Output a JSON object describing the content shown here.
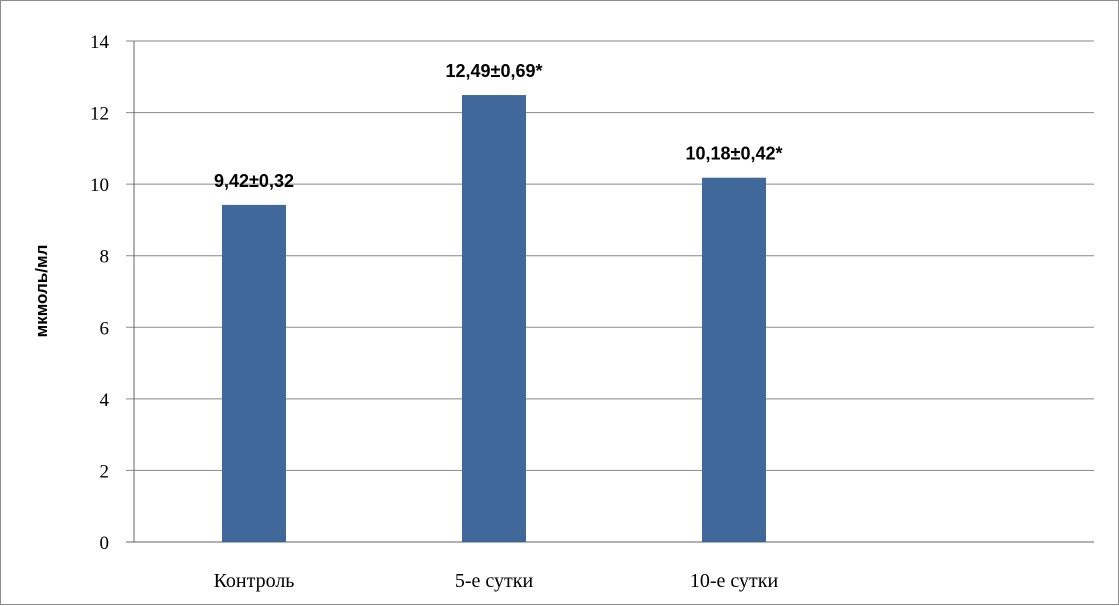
{
  "chart_data": {
    "type": "bar",
    "title": "",
    "xlabel": "",
    "ylabel": "мкмоль/мл",
    "categories": [
      "Контроль",
      "5-е сутки",
      "10-е сутки",
      ""
    ],
    "values": [
      9.42,
      12.49,
      10.18,
      null
    ],
    "data_labels": [
      "9,42±0,32",
      "12,49±0,69*",
      "10,18±0,42*",
      ""
    ],
    "ylim": [
      0,
      14
    ],
    "yticks": [
      "0",
      "2",
      "4",
      "6",
      "8",
      "10",
      "12",
      "14"
    ],
    "grid": true,
    "legend": "none",
    "bar_color": "#41689b",
    "grid_color": "#888888"
  }
}
